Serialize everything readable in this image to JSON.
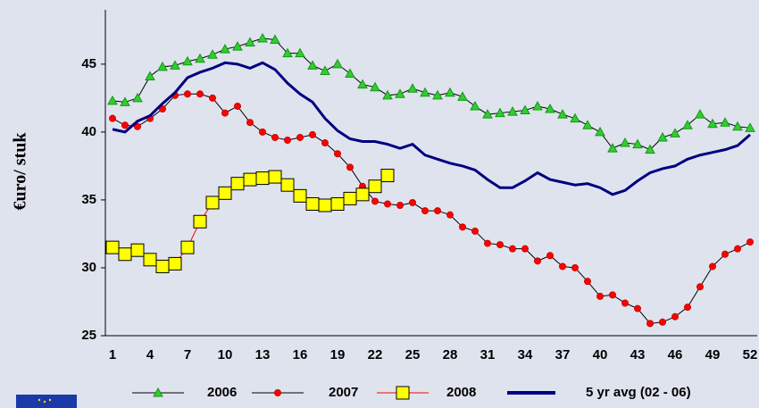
{
  "chart_data": {
    "type": "line",
    "y_label": "€uro/ stuk",
    "categories": [
      1,
      null,
      null,
      4,
      null,
      null,
      7,
      null,
      null,
      10,
      null,
      null,
      13,
      null,
      null,
      16,
      null,
      null,
      19,
      null,
      null,
      22,
      null,
      null,
      25,
      null,
      null,
      28,
      null,
      null,
      31,
      null,
      null,
      34,
      null,
      null,
      37,
      null,
      null,
      40,
      null,
      null,
      43,
      null,
      null,
      46,
      null,
      null,
      49,
      null,
      null,
      52
    ],
    "ylim": [
      25,
      49
    ],
    "yticks": [
      25,
      30,
      35,
      40,
      45
    ],
    "grid": false,
    "legend": "bottom",
    "series": [
      {
        "name": "2006",
        "color": "#33cc33",
        "marker": "triangle",
        "values": [
          42.3,
          42.2,
          42.5,
          44.1,
          44.8,
          44.9,
          45.2,
          45.4,
          45.7,
          46.1,
          46.3,
          46.6,
          46.9,
          46.8,
          45.8,
          45.8,
          44.9,
          44.5,
          45.0,
          44.3,
          43.5,
          43.3,
          42.7,
          42.8,
          43.2,
          42.9,
          42.7,
          42.9,
          42.6,
          41.9,
          41.3,
          41.4,
          41.5,
          41.6,
          41.9,
          41.7,
          41.3,
          41.0,
          40.5,
          40.0,
          38.8,
          39.2,
          39.1,
          38.7,
          39.6,
          39.9,
          40.5,
          41.3,
          40.6,
          40.7,
          40.4,
          40.3
        ]
      },
      {
        "name": "2007",
        "color": "#ff0000",
        "marker": "circle",
        "values": [
          41.0,
          40.5,
          40.4,
          41.0,
          41.7,
          42.7,
          42.8,
          42.8,
          42.5,
          41.4,
          41.9,
          40.7,
          40.0,
          39.6,
          39.4,
          39.6,
          39.8,
          39.2,
          38.4,
          37.4,
          36.0,
          34.9,
          34.7,
          34.6,
          34.8,
          34.2,
          34.2,
          33.9,
          33.0,
          32.7,
          31.8,
          31.7,
          31.4,
          31.4,
          30.5,
          30.9,
          30.1,
          30.0,
          29.0,
          27.9,
          28.0,
          27.4,
          27.0,
          25.9,
          26.0,
          26.4,
          27.1,
          28.6,
          30.1,
          31.0,
          31.4,
          31.9
        ]
      },
      {
        "name": "2008",
        "color": "#ffff00",
        "marker": "square",
        "values": [
          31.5,
          31.0,
          31.3,
          30.6,
          30.1,
          30.3,
          31.5,
          33.4,
          34.8,
          35.5,
          36.2,
          36.5,
          36.6,
          36.7,
          36.1,
          35.3,
          34.7,
          34.6,
          34.7,
          35.1,
          35.4,
          36.0,
          36.8,
          null,
          null,
          null,
          null,
          null,
          null,
          null,
          null,
          null,
          null,
          null,
          null,
          null,
          null,
          null,
          null,
          null,
          null,
          null,
          null,
          null,
          null,
          null,
          null,
          null,
          null,
          null,
          null,
          null
        ]
      },
      {
        "name": "5 yr avg (02 - 06)",
        "color": "#000080",
        "marker": "none",
        "values": [
          40.2,
          40.0,
          40.8,
          41.2,
          42.1,
          42.9,
          44.0,
          44.4,
          44.7,
          45.1,
          45.0,
          44.7,
          45.1,
          44.6,
          43.6,
          42.8,
          42.2,
          41.0,
          40.1,
          39.5,
          39.3,
          39.3,
          39.1,
          38.8,
          39.1,
          38.3,
          38.0,
          37.7,
          37.5,
          37.2,
          36.5,
          35.9,
          35.9,
          36.4,
          37.0,
          36.5,
          36.3,
          36.1,
          36.2,
          35.9,
          35.4,
          35.7,
          36.4,
          37.0,
          37.3,
          37.5,
          38.0,
          38.3,
          38.5,
          38.7,
          39.0,
          39.8
        ]
      }
    ]
  }
}
